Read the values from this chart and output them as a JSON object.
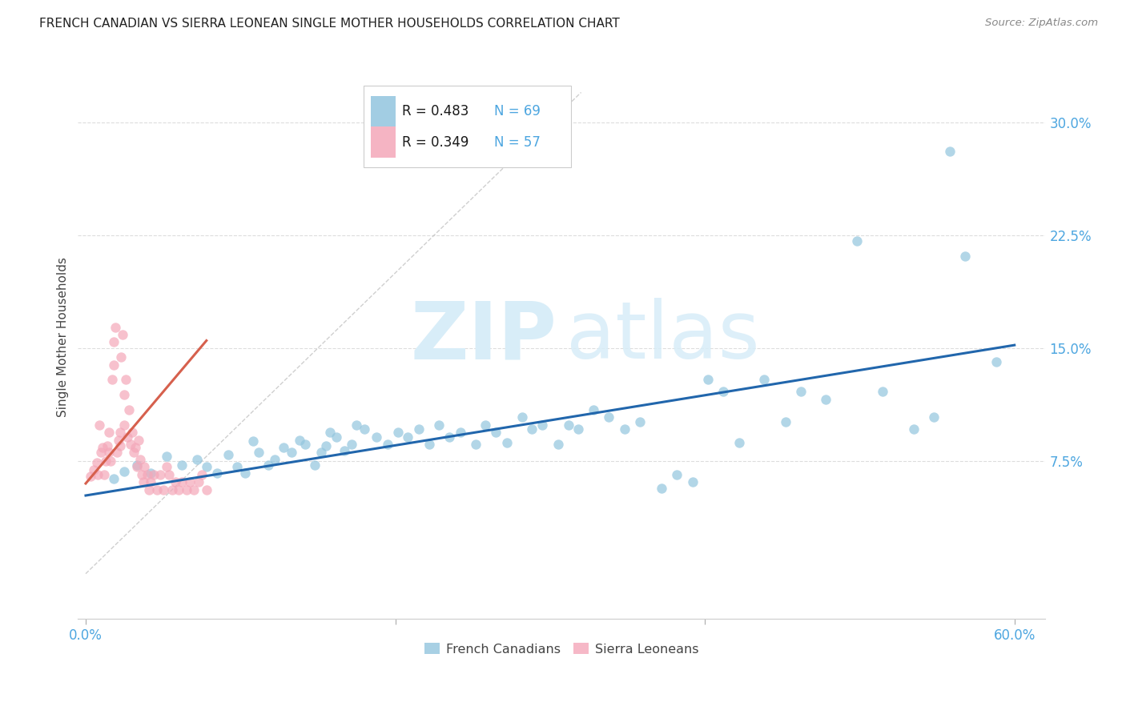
{
  "title": "FRENCH CANADIAN VS SIERRA LEONEAN SINGLE MOTHER HOUSEHOLDS CORRELATION CHART",
  "source": "Source: ZipAtlas.com",
  "ylabel": "Single Mother Households",
  "xlabel_ticks": [
    "0.0%",
    "60.0%"
  ],
  "xlabel_tick_vals": [
    0.0,
    0.6
  ],
  "ylabel_ticks": [
    "7.5%",
    "15.0%",
    "22.5%",
    "30.0%"
  ],
  "ylabel_tick_vals": [
    0.075,
    0.15,
    0.225,
    0.3
  ],
  "xlim": [
    -0.005,
    0.62
  ],
  "ylim": [
    -0.03,
    0.345
  ],
  "legend_r_blue": "R = 0.483",
  "legend_n_blue": "N = 69",
  "legend_r_pink": "R = 0.349",
  "legend_n_pink": "N = 57",
  "blue_color": "#92c5de",
  "pink_color": "#f4a7b9",
  "blue_line_color": "#2166ac",
  "pink_line_color": "#d6604d",
  "diag_color": "#bbbbbb",
  "title_color": "#222222",
  "axis_label_color": "#444444",
  "tick_label_color_blue": "#4da6e0",
  "grid_color": "#dddddd",
  "blue_scatter_x": [
    0.018,
    0.025,
    0.033,
    0.042,
    0.052,
    0.062,
    0.072,
    0.078,
    0.085,
    0.092,
    0.098,
    0.103,
    0.108,
    0.112,
    0.118,
    0.122,
    0.128,
    0.133,
    0.138,
    0.142,
    0.148,
    0.152,
    0.155,
    0.158,
    0.162,
    0.167,
    0.172,
    0.175,
    0.18,
    0.188,
    0.195,
    0.202,
    0.208,
    0.215,
    0.222,
    0.228,
    0.235,
    0.242,
    0.252,
    0.258,
    0.265,
    0.272,
    0.282,
    0.288,
    0.295,
    0.305,
    0.312,
    0.318,
    0.328,
    0.338,
    0.348,
    0.358,
    0.372,
    0.382,
    0.392,
    0.402,
    0.412,
    0.422,
    0.438,
    0.452,
    0.462,
    0.478,
    0.498,
    0.515,
    0.535,
    0.548,
    0.558,
    0.568,
    0.588
  ],
  "blue_scatter_y": [
    0.063,
    0.068,
    0.072,
    0.067,
    0.078,
    0.072,
    0.076,
    0.071,
    0.067,
    0.079,
    0.071,
    0.067,
    0.088,
    0.081,
    0.072,
    0.076,
    0.084,
    0.081,
    0.089,
    0.086,
    0.072,
    0.081,
    0.085,
    0.094,
    0.091,
    0.082,
    0.086,
    0.099,
    0.096,
    0.091,
    0.086,
    0.094,
    0.091,
    0.096,
    0.086,
    0.099,
    0.091,
    0.094,
    0.086,
    0.099,
    0.094,
    0.087,
    0.104,
    0.096,
    0.099,
    0.086,
    0.099,
    0.096,
    0.109,
    0.104,
    0.096,
    0.101,
    0.057,
    0.066,
    0.061,
    0.129,
    0.121,
    0.087,
    0.129,
    0.101,
    0.121,
    0.116,
    0.221,
    0.121,
    0.096,
    0.104,
    0.281,
    0.211,
    0.141
  ],
  "pink_scatter_x": [
    0.003,
    0.005,
    0.007,
    0.008,
    0.009,
    0.01,
    0.011,
    0.012,
    0.013,
    0.014,
    0.015,
    0.015,
    0.016,
    0.017,
    0.018,
    0.018,
    0.019,
    0.02,
    0.021,
    0.022,
    0.022,
    0.023,
    0.024,
    0.025,
    0.025,
    0.026,
    0.027,
    0.028,
    0.029,
    0.03,
    0.031,
    0.032,
    0.033,
    0.034,
    0.035,
    0.036,
    0.037,
    0.038,
    0.04,
    0.041,
    0.042,
    0.044,
    0.046,
    0.048,
    0.05,
    0.052,
    0.054,
    0.056,
    0.058,
    0.06,
    0.062,
    0.065,
    0.067,
    0.07,
    0.073,
    0.075,
    0.078
  ],
  "pink_scatter_y": [
    0.065,
    0.069,
    0.074,
    0.066,
    0.099,
    0.081,
    0.084,
    0.066,
    0.075,
    0.085,
    0.094,
    0.081,
    0.075,
    0.129,
    0.139,
    0.154,
    0.164,
    0.081,
    0.089,
    0.085,
    0.094,
    0.144,
    0.159,
    0.119,
    0.099,
    0.129,
    0.091,
    0.109,
    0.086,
    0.094,
    0.081,
    0.084,
    0.071,
    0.089,
    0.076,
    0.066,
    0.061,
    0.071,
    0.066,
    0.056,
    0.061,
    0.066,
    0.056,
    0.066,
    0.056,
    0.071,
    0.066,
    0.056,
    0.061,
    0.056,
    0.061,
    0.056,
    0.061,
    0.056,
    0.061,
    0.066,
    0.056
  ],
  "blue_line_x": [
    0.0,
    0.6
  ],
  "blue_line_y": [
    0.052,
    0.152
  ],
  "pink_line_x": [
    0.0,
    0.078
  ],
  "pink_line_y": [
    0.06,
    0.155
  ],
  "diag_line_x": [
    0.0,
    0.32
  ],
  "diag_line_y": [
    0.0,
    0.32
  ],
  "watermark_zip": "ZIP",
  "watermark_atlas": "atlas",
  "legend_items": [
    {
      "label": "French Canadians",
      "color": "#92c5de"
    },
    {
      "label": "Sierra Leoneans",
      "color": "#f4a7b9"
    }
  ]
}
